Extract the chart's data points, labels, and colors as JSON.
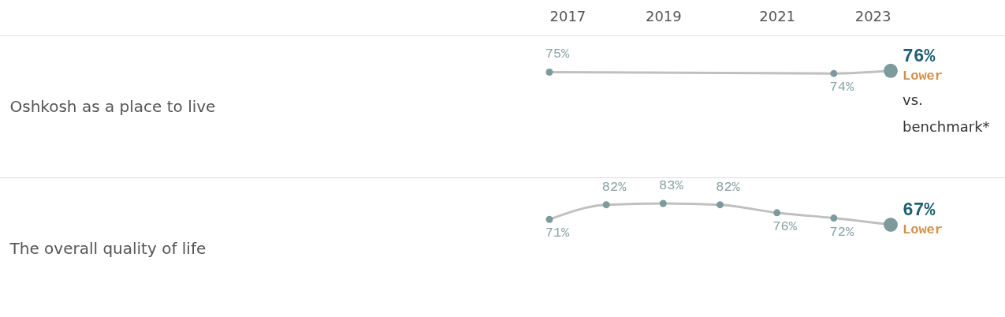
{
  "chart_data": [
    {
      "type": "line",
      "ylabel": "Oshkosh as a place to live",
      "xlim": [
        2017,
        2023
      ],
      "xticks": [
        2017,
        2019,
        2021,
        2023
      ],
      "tick_labels": "x",
      "marker": "circle",
      "line_style": "solid",
      "series": [
        {
          "color": "#7d9a9d",
          "x": [
            2017,
            2022,
            2023
          ],
          "values": [
            75,
            74,
            76
          ],
          "value_labels": [
            "75%",
            "74%",
            "76%"
          ]
        }
      ],
      "annotations": [
        "Lower",
        "vs. benchmark*"
      ]
    },
    {
      "type": "line",
      "ylabel": "The overall quality of life",
      "xlim": [
        2017,
        2023
      ],
      "tick_labels": false,
      "marker": "circle",
      "line_style": "solid",
      "series": [
        {
          "color": "#7d9a9d",
          "x": [
            2017,
            2018,
            2019,
            2020,
            2021,
            2022,
            2023
          ],
          "values": [
            71,
            82,
            83,
            82,
            76,
            72,
            67
          ],
          "value_labels": [
            "71%",
            "82%",
            "83%",
            "82%",
            "76%",
            "72%",
            "67%"
          ]
        }
      ],
      "annotations": [
        "Lower"
      ]
    }
  ]
}
